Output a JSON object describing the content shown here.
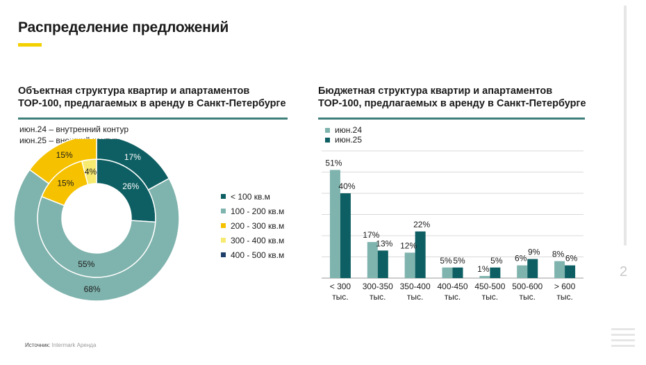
{
  "page": {
    "title": "Распределение предложений",
    "page_number": "2",
    "source_label": "Источник:",
    "source_value": "Intermark Аренда"
  },
  "colors": {
    "dark_teal": "#0e5f63",
    "light_teal": "#7fb3ad",
    "yellow": "#f6c200",
    "light_yellow": "#f7ea70",
    "navy": "#1f3f6b",
    "accent": "#f3d000",
    "rule": "#3f7f7a"
  },
  "left": {
    "title_line1": "Объектная структура квартир и апартаментов",
    "title_line2": "ТОР-100, предлагаемых в аренду в Санкт-Петербурге",
    "note_line1": "июн.24 – внутренний контур",
    "note_line2": "июн.25 – внешний контур"
  },
  "right": {
    "title_line1": "Бюджетная структура квартир и апартаментов",
    "title_line2": "ТОР-100, предлагаемых в аренду в Санкт-Петербурге"
  },
  "chart_data": [
    {
      "type": "pie",
      "subtype": "donut",
      "title": "Объектная структура квартир и апартаментов ТОР-100, предлагаемых в аренду в Санкт-Петербурге",
      "legend_position": "right",
      "categories": [
        "< 100 кв.м",
        "100 - 200 кв.м",
        "200 - 300 кв.м",
        "300 - 400 кв.м",
        "400 - 500 кв.м"
      ],
      "category_colors": [
        "#0e5f63",
        "#7fb3ad",
        "#f6c200",
        "#f7ea70",
        "#1f3f6b"
      ],
      "series": [
        {
          "name": "июн.24",
          "ring": "inner",
          "values": [
            26,
            55,
            15,
            4,
            0
          ],
          "labels": [
            "26%",
            "55%",
            "15%",
            "4%",
            ""
          ]
        },
        {
          "name": "июн.25",
          "ring": "outer",
          "values": [
            17,
            68,
            15,
            0,
            0
          ],
          "labels": [
            "17%",
            "68%",
            "15%",
            "",
            ""
          ]
        }
      ]
    },
    {
      "type": "bar",
      "title": "Бюджетная структура квартир и апартаментов ТОР-100, предлагаемых в аренду в Санкт-Петербурге",
      "categories": [
        "< 300 тыс.",
        "300-350 тыс.",
        "350-400 тыс.",
        "400-450 тыс.",
        "450-500 тыс.",
        "500-600 тыс.",
        "> 600 тыс."
      ],
      "category_lines": [
        [
          "< 300",
          "тыс."
        ],
        [
          "300-350",
          "тыс."
        ],
        [
          "350-400",
          "тыс."
        ],
        [
          "400-450",
          "тыс."
        ],
        [
          "450-500",
          "тыс."
        ],
        [
          "500-600",
          "тыс."
        ],
        [
          "> 600",
          "тыс."
        ]
      ],
      "series": [
        {
          "name": "июн.24",
          "color": "#7fb3ad",
          "values": [
            51,
            17,
            12,
            5,
            1,
            6,
            8
          ],
          "labels": [
            "51%",
            "17%",
            "12%",
            "5%",
            "1%",
            "6%",
            "8%"
          ]
        },
        {
          "name": "июн.25",
          "color": "#0e5f63",
          "values": [
            40,
            13,
            22,
            5,
            5,
            9,
            6
          ],
          "labels": [
            "40%",
            "13%",
            "22%",
            "5%",
            "5%",
            "9%",
            "6%"
          ]
        }
      ],
      "ylim": [
        0,
        60
      ],
      "gridlines": true,
      "legend_position": "top-left"
    }
  ]
}
